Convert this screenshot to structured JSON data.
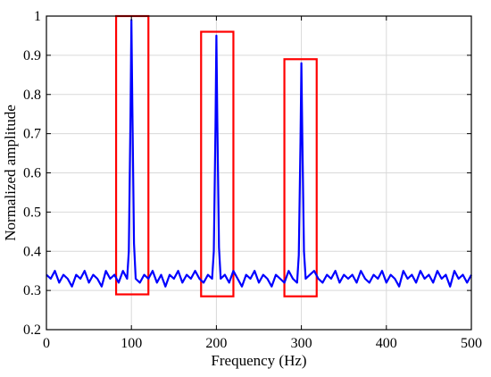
{
  "chart_data": {
    "type": "line",
    "title": "",
    "xlabel": "Frequency (Hz)",
    "ylabel": "Normalized amplitude",
    "xlim": [
      0,
      500
    ],
    "ylim": [
      0.2,
      1.0
    ],
    "xticks": [
      0,
      100,
      200,
      300,
      400,
      500
    ],
    "xtick_labels": [
      "0",
      "100",
      "200",
      "300",
      "400",
      "500"
    ],
    "yticks": [
      0.2,
      0.3,
      0.4,
      0.5,
      0.6,
      0.7,
      0.8,
      0.9,
      1.0
    ],
    "ytick_labels": [
      "0.2",
      "0.3",
      "0.4",
      "0.5",
      "0.6",
      "0.7",
      "0.8",
      "0.9",
      "1"
    ],
    "grid": true,
    "legend": "none",
    "colors": {
      "series": "#0000ff",
      "highlight": "#ff0000",
      "grid": "#d9d9d9"
    },
    "series": [
      {
        "x": [
          0,
          5,
          10,
          15,
          20,
          25,
          30,
          35,
          40,
          45,
          50,
          55,
          60,
          65,
          70,
          75,
          80,
          85,
          90,
          95,
          97,
          99,
          100,
          101,
          103,
          105,
          110,
          115,
          120,
          125,
          130,
          135,
          140,
          145,
          150,
          155,
          160,
          165,
          170,
          175,
          180,
          185,
          190,
          195,
          197,
          199,
          200,
          201,
          203,
          205,
          210,
          215,
          220,
          225,
          230,
          235,
          240,
          245,
          250,
          255,
          260,
          265,
          270,
          275,
          280,
          285,
          290,
          295,
          297,
          299,
          300,
          301,
          303,
          305,
          310,
          315,
          320,
          325,
          330,
          335,
          340,
          345,
          350,
          355,
          360,
          365,
          370,
          375,
          380,
          385,
          390,
          395,
          400,
          405,
          410,
          415,
          420,
          425,
          430,
          435,
          440,
          445,
          450,
          455,
          460,
          465,
          470,
          475,
          480,
          485,
          490,
          495,
          500
        ],
        "y": [
          0.34,
          0.33,
          0.35,
          0.32,
          0.34,
          0.33,
          0.31,
          0.34,
          0.33,
          0.35,
          0.32,
          0.34,
          0.33,
          0.31,
          0.35,
          0.33,
          0.34,
          0.32,
          0.35,
          0.33,
          0.4,
          0.75,
          0.99,
          0.78,
          0.42,
          0.33,
          0.32,
          0.34,
          0.33,
          0.35,
          0.32,
          0.34,
          0.31,
          0.34,
          0.33,
          0.35,
          0.32,
          0.34,
          0.33,
          0.35,
          0.33,
          0.32,
          0.34,
          0.33,
          0.4,
          0.72,
          0.95,
          0.74,
          0.41,
          0.33,
          0.34,
          0.32,
          0.35,
          0.33,
          0.31,
          0.34,
          0.33,
          0.35,
          0.32,
          0.34,
          0.33,
          0.31,
          0.34,
          0.33,
          0.32,
          0.35,
          0.33,
          0.32,
          0.39,
          0.68,
          0.88,
          0.7,
          0.4,
          0.33,
          0.34,
          0.35,
          0.33,
          0.32,
          0.34,
          0.33,
          0.35,
          0.32,
          0.34,
          0.33,
          0.34,
          0.32,
          0.35,
          0.33,
          0.32,
          0.34,
          0.33,
          0.35,
          0.32,
          0.34,
          0.33,
          0.31,
          0.35,
          0.33,
          0.34,
          0.32,
          0.35,
          0.33,
          0.34,
          0.32,
          0.35,
          0.33,
          0.34,
          0.31,
          0.35,
          0.33,
          0.34,
          0.32,
          0.34
        ]
      }
    ],
    "highlight_regions": [
      {
        "x": [
          82,
          120
        ],
        "y": [
          0.29,
          1.0
        ]
      },
      {
        "x": [
          182,
          220
        ],
        "y": [
          0.285,
          0.96
        ]
      },
      {
        "x": [
          280,
          318
        ],
        "y": [
          0.285,
          0.89
        ]
      }
    ]
  }
}
